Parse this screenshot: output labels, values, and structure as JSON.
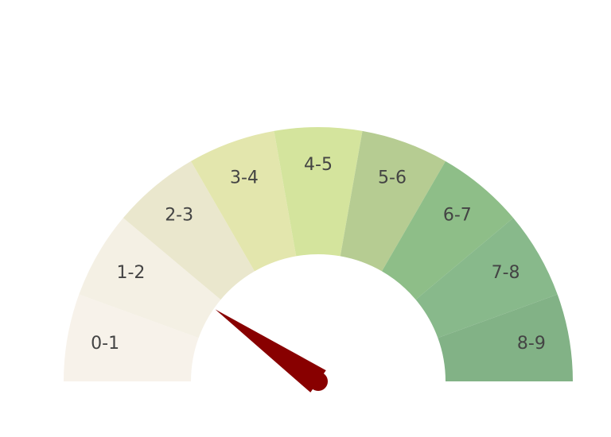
{
  "chart_data": {
    "type": "gauge",
    "title": "",
    "range": [
      0,
      9
    ],
    "segments": [
      {
        "label": "0-1",
        "from": 0,
        "to": 1,
        "color": "#f7f2ea"
      },
      {
        "label": "1-2",
        "from": 1,
        "to": 2,
        "color": "#f4f0e4"
      },
      {
        "label": "2-3",
        "from": 2,
        "to": 3,
        "color": "#eae7cd"
      },
      {
        "label": "3-4",
        "from": 3,
        "to": 4,
        "color": "#e3e6ad"
      },
      {
        "label": "4-5",
        "from": 4,
        "to": 5,
        "color": "#d4e49d"
      },
      {
        "label": "5-6",
        "from": 5,
        "to": 6,
        "color": "#b6cc92"
      },
      {
        "label": "6-7",
        "from": 6,
        "to": 7,
        "color": "#8ebe88"
      },
      {
        "label": "7-8",
        "from": 7,
        "to": 8,
        "color": "#88b98b"
      },
      {
        "label": "8-9",
        "from": 8,
        "to": 9,
        "color": "#82b286"
      }
    ],
    "needle": {
      "value": 1.75,
      "color": "#880000"
    }
  }
}
